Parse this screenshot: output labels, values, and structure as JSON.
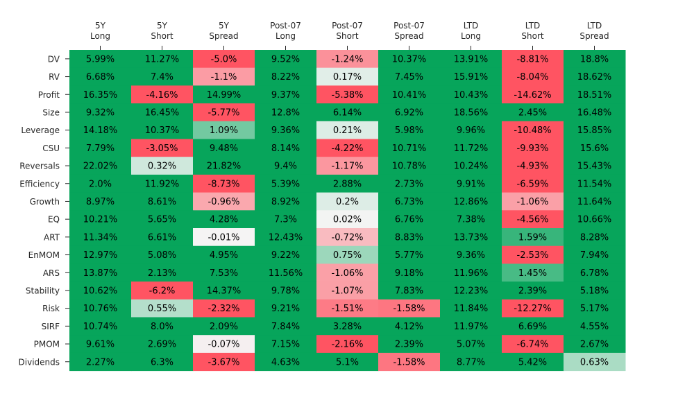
{
  "chart_data": {
    "type": "heatmap",
    "x_tick_labels": [
      [
        "5Y",
        "Long"
      ],
      [
        "5Y",
        "Short"
      ],
      [
        "5Y",
        "Spread"
      ],
      [
        "Post-07",
        "Long"
      ],
      [
        "Post-07",
        "Short"
      ],
      [
        "Post-07",
        "Spread"
      ],
      [
        "LTD",
        "Long"
      ],
      [
        "LTD",
        "Short"
      ],
      [
        "LTD",
        "Spread"
      ]
    ],
    "y_tick_labels": [
      "DV",
      "RV",
      "Profit",
      "Size",
      "Leverage",
      "CSU",
      "Reversals",
      "Efficiency",
      "Growth",
      "EQ",
      "ART",
      "EnMOM",
      "ARS",
      "Stability",
      "Risk",
      "SIRF",
      "PMOM",
      "Dividends"
    ],
    "values": [
      [
        5.99,
        11.27,
        -5.0,
        9.52,
        -1.24,
        10.37,
        13.91,
        -8.81,
        18.8
      ],
      [
        6.68,
        7.4,
        -1.1,
        8.22,
        0.17,
        7.45,
        15.91,
        -8.04,
        18.62
      ],
      [
        16.35,
        -4.16,
        14.99,
        9.37,
        -5.38,
        10.41,
        10.43,
        -14.62,
        18.51
      ],
      [
        9.32,
        16.45,
        -5.77,
        12.8,
        6.14,
        6.92,
        18.56,
        2.45,
        16.48
      ],
      [
        14.18,
        10.37,
        1.09,
        9.36,
        0.21,
        5.98,
        9.96,
        -10.48,
        15.85
      ],
      [
        7.79,
        -3.05,
        9.48,
        8.14,
        -4.22,
        10.71,
        11.72,
        -9.93,
        15.6
      ],
      [
        22.02,
        0.32,
        21.82,
        9.4,
        -1.17,
        10.78,
        10.24,
        -4.93,
        15.43
      ],
      [
        2.0,
        11.92,
        -8.73,
        5.39,
        2.88,
        2.73,
        9.91,
        -6.59,
        11.54
      ],
      [
        8.97,
        8.61,
        -0.96,
        8.92,
        0.2,
        6.73,
        12.86,
        -1.06,
        11.64
      ],
      [
        10.21,
        5.65,
        4.28,
        7.3,
        0.02,
        6.76,
        7.38,
        -4.56,
        10.66
      ],
      [
        11.34,
        6.61,
        -0.01,
        12.43,
        -0.72,
        8.83,
        13.73,
        1.59,
        8.28
      ],
      [
        12.97,
        5.08,
        4.95,
        9.22,
        0.75,
        5.77,
        9.36,
        -2.53,
        7.94
      ],
      [
        13.87,
        2.13,
        7.53,
        11.56,
        -1.06,
        9.18,
        11.96,
        1.45,
        6.78
      ],
      [
        10.62,
        -6.2,
        14.37,
        9.78,
        -1.07,
        7.83,
        12.23,
        2.39,
        5.18
      ],
      [
        10.76,
        0.55,
        -2.32,
        9.21,
        -1.51,
        -1.58,
        11.84,
        -12.27,
        5.17
      ],
      [
        10.74,
        8.0,
        2.09,
        7.84,
        3.28,
        4.12,
        11.97,
        6.69,
        4.55
      ],
      [
        9.61,
        2.69,
        -0.07,
        7.15,
        -2.16,
        2.39,
        5.07,
        -6.74,
        2.67
      ],
      [
        2.27,
        6.3,
        -3.67,
        4.63,
        5.1,
        -1.58,
        8.77,
        5.42,
        0.63
      ]
    ],
    "value_suffix": "%",
    "color_scale": {
      "min": -2,
      "max": 2,
      "neg_color": "#FF5462",
      "mid_color": "#F5F5F5",
      "pos_color": "#07A55B"
    },
    "colorbar": false,
    "grid": false
  }
}
